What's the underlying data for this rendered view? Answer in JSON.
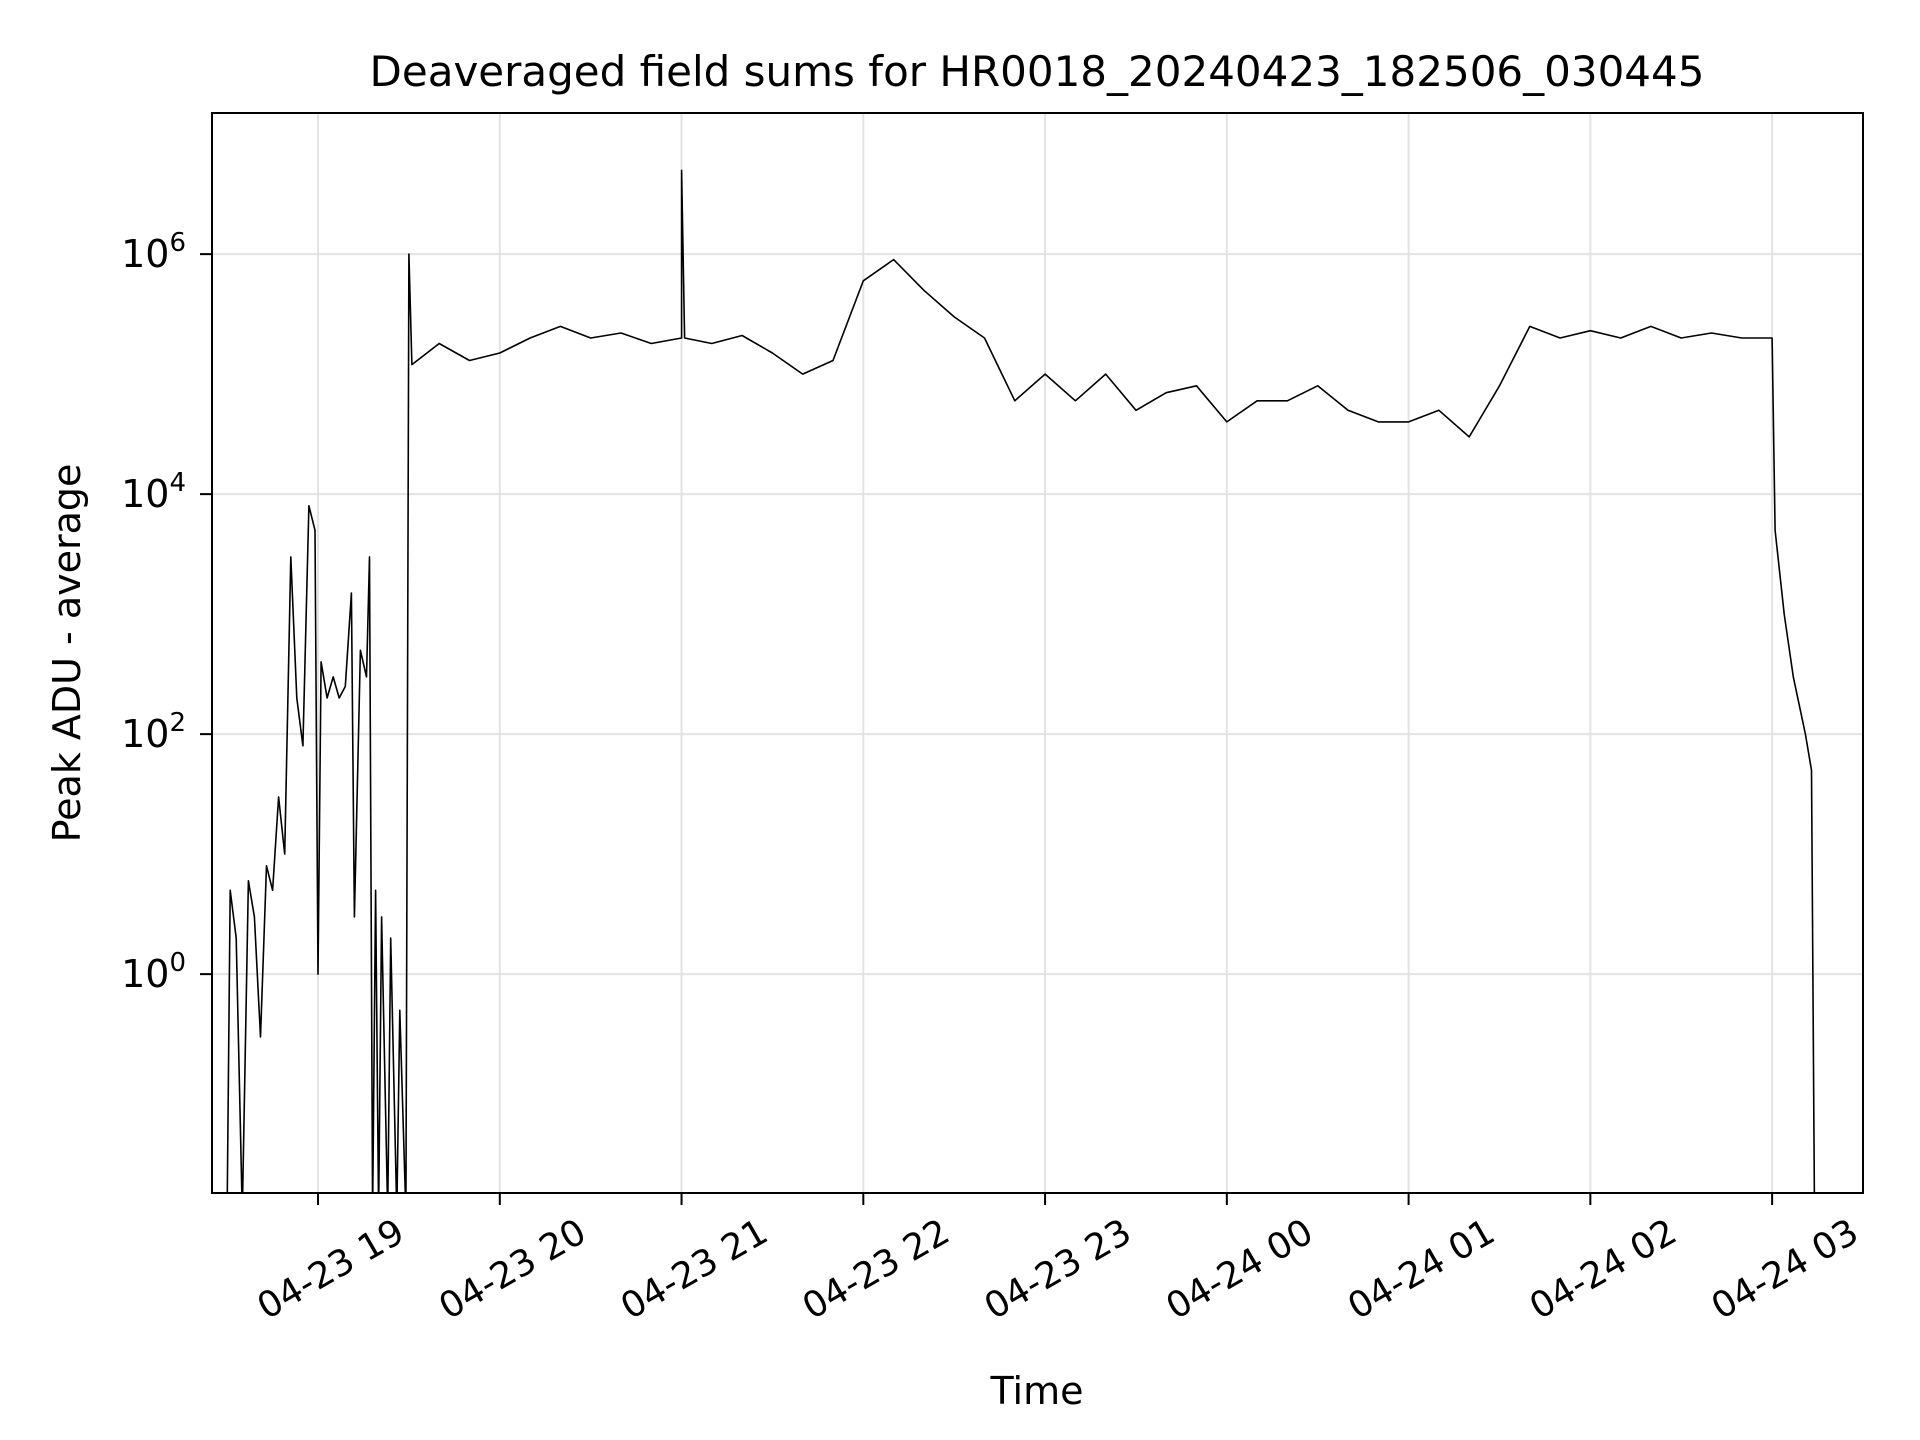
{
  "chart_data": {
    "type": "line",
    "title": "Deaveraged field sums for HR0018_20240423_182506_030445",
    "xlabel": "Time",
    "ylabel": "Peak ADU - average",
    "yscale": "log",
    "grid": true,
    "xlim": [
      "2024-04-23 18:25",
      "2024-04-24 03:30"
    ],
    "ylim": [
      0.015,
      15000000
    ],
    "x_ticks": [
      {
        "value": "2024-04-23 19:00",
        "label": "04-23 19"
      },
      {
        "value": "2024-04-23 20:00",
        "label": "04-23 20"
      },
      {
        "value": "2024-04-23 21:00",
        "label": "04-23 21"
      },
      {
        "value": "2024-04-23 22:00",
        "label": "04-23 22"
      },
      {
        "value": "2024-04-23 23:00",
        "label": "04-23 23"
      },
      {
        "value": "2024-04-24 00:00",
        "label": "04-24 00"
      },
      {
        "value": "2024-04-24 01:00",
        "label": "04-24 01"
      },
      {
        "value": "2024-04-24 02:00",
        "label": "04-24 02"
      },
      {
        "value": "2024-04-24 03:00",
        "label": "04-24 03"
      }
    ],
    "y_ticks": [
      {
        "value": 1,
        "base": "10",
        "exp": "0"
      },
      {
        "value": 100,
        "base": "10",
        "exp": "2"
      },
      {
        "value": 10000,
        "base": "10",
        "exp": "4"
      },
      {
        "value": 1000000,
        "base": "10",
        "exp": "6"
      }
    ],
    "series": [
      {
        "color": "#000000",
        "points": [
          [
            "2024-04-23 18:30",
            0.01
          ],
          [
            "2024-04-23 18:31",
            5
          ],
          [
            "2024-04-23 18:33",
            2
          ],
          [
            "2024-04-23 18:35",
            0.01
          ],
          [
            "2024-04-23 18:37",
            6
          ],
          [
            "2024-04-23 18:39",
            3
          ],
          [
            "2024-04-23 18:41",
            0.3
          ],
          [
            "2024-04-23 18:43",
            8
          ],
          [
            "2024-04-23 18:45",
            5
          ],
          [
            "2024-04-23 18:47",
            30
          ],
          [
            "2024-04-23 18:49",
            10
          ],
          [
            "2024-04-23 18:51",
            3000
          ],
          [
            "2024-04-23 18:53",
            200
          ],
          [
            "2024-04-23 18:55",
            80
          ],
          [
            "2024-04-23 18:57",
            8000
          ],
          [
            "2024-04-23 18:59",
            5000
          ],
          [
            "2024-04-23 19:00",
            1
          ],
          [
            "2024-04-23 19:01",
            400
          ],
          [
            "2024-04-23 19:03",
            200
          ],
          [
            "2024-04-23 19:05",
            300
          ],
          [
            "2024-04-23 19:07",
            200
          ],
          [
            "2024-04-23 19:09",
            250
          ],
          [
            "2024-04-23 19:11",
            1500
          ],
          [
            "2024-04-23 19:12",
            3
          ],
          [
            "2024-04-23 19:14",
            500
          ],
          [
            "2024-04-23 19:16",
            300
          ],
          [
            "2024-04-23 19:17",
            3000
          ],
          [
            "2024-04-23 19:18",
            0.01
          ],
          [
            "2024-04-23 19:19",
            5
          ],
          [
            "2024-04-23 19:20",
            0.01
          ],
          [
            "2024-04-23 19:21",
            3
          ],
          [
            "2024-04-23 19:23",
            0.01
          ],
          [
            "2024-04-23 19:24",
            2
          ],
          [
            "2024-04-23 19:26",
            0.01
          ],
          [
            "2024-04-23 19:27",
            0.5
          ],
          [
            "2024-04-23 19:29",
            0.01
          ],
          [
            "2024-04-23 19:30",
            1000000
          ],
          [
            "2024-04-23 19:31",
            120000
          ],
          [
            "2024-04-23 19:40",
            180000
          ],
          [
            "2024-04-23 19:50",
            130000
          ],
          [
            "2024-04-23 20:00",
            150000
          ],
          [
            "2024-04-23 20:10",
            200000
          ],
          [
            "2024-04-23 20:20",
            250000
          ],
          [
            "2024-04-23 20:30",
            200000
          ],
          [
            "2024-04-23 20:40",
            220000
          ],
          [
            "2024-04-23 20:50",
            180000
          ],
          [
            "2024-04-23 21:00",
            200000
          ],
          [
            "2024-04-23 21:00",
            5000000
          ],
          [
            "2024-04-23 21:01",
            200000
          ],
          [
            "2024-04-23 21:10",
            180000
          ],
          [
            "2024-04-23 21:20",
            210000
          ],
          [
            "2024-04-23 21:30",
            150000
          ],
          [
            "2024-04-23 21:40",
            100000
          ],
          [
            "2024-04-23 21:50",
            130000
          ],
          [
            "2024-04-23 22:00",
            600000
          ],
          [
            "2024-04-23 22:10",
            900000
          ],
          [
            "2024-04-23 22:20",
            500000
          ],
          [
            "2024-04-23 22:30",
            300000
          ],
          [
            "2024-04-23 22:40",
            200000
          ],
          [
            "2024-04-23 22:50",
            60000
          ],
          [
            "2024-04-23 23:00",
            100000
          ],
          [
            "2024-04-23 23:10",
            60000
          ],
          [
            "2024-04-23 23:20",
            100000
          ],
          [
            "2024-04-23 23:30",
            50000
          ],
          [
            "2024-04-23 23:40",
            70000
          ],
          [
            "2024-04-23 23:50",
            80000
          ],
          [
            "2024-04-24 00:00",
            40000
          ],
          [
            "2024-04-24 00:10",
            60000
          ],
          [
            "2024-04-24 00:20",
            60000
          ],
          [
            "2024-04-24 00:30",
            80000
          ],
          [
            "2024-04-24 00:40",
            50000
          ],
          [
            "2024-04-24 00:50",
            40000
          ],
          [
            "2024-04-24 01:00",
            40000
          ],
          [
            "2024-04-24 01:10",
            50000
          ],
          [
            "2024-04-24 01:20",
            30000
          ],
          [
            "2024-04-24 01:30",
            80000
          ],
          [
            "2024-04-24 01:40",
            250000
          ],
          [
            "2024-04-24 01:50",
            200000
          ],
          [
            "2024-04-24 02:00",
            230000
          ],
          [
            "2024-04-24 02:10",
            200000
          ],
          [
            "2024-04-24 02:20",
            250000
          ],
          [
            "2024-04-24 02:30",
            200000
          ],
          [
            "2024-04-24 02:40",
            220000
          ],
          [
            "2024-04-24 02:50",
            200000
          ],
          [
            "2024-04-24 03:00",
            200000
          ],
          [
            "2024-04-24 03:01",
            5000
          ],
          [
            "2024-04-24 03:04",
            1000
          ],
          [
            "2024-04-24 03:07",
            300
          ],
          [
            "2024-04-24 03:11",
            100
          ],
          [
            "2024-04-24 03:13",
            50
          ],
          [
            "2024-04-24 03:14",
            0.01
          ]
        ]
      }
    ]
  }
}
